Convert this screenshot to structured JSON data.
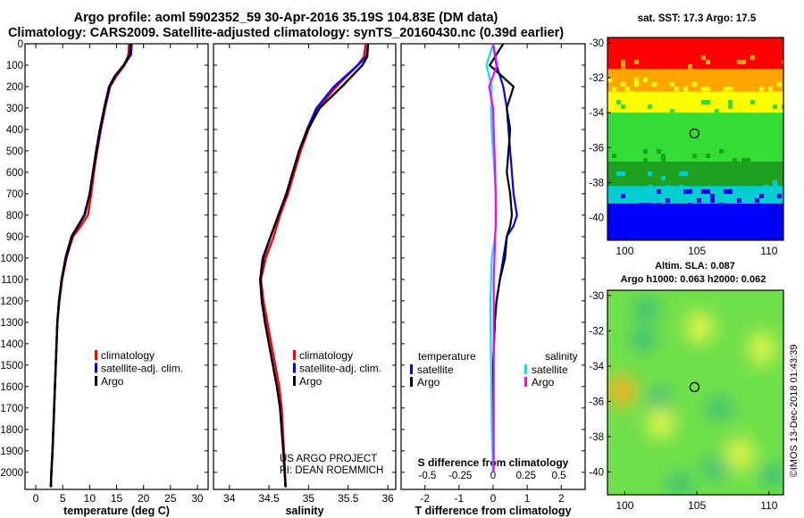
{
  "header": {
    "line1": "Argo profile: aoml 5902352_59 30-Apr-2016 35.19S 104.83E (DM data)",
    "line2": "Climatology: CARS2009. Satellite-adjusted climatology: synTS_20160430.nc (0.39d earlier)"
  },
  "credits": {
    "project": "US ARGO PROJECT",
    "pi": "PI: DEAN ROEMMICH",
    "imos": "©IMOS 13-Dec-2018 01:43:39"
  },
  "colors": {
    "climatology": "#ff0000",
    "satellite": "#0000ff",
    "argo": "#000000",
    "salinity_satellite": "#00e5ee",
    "salinity_argo": "#ff00ff"
  },
  "chart_data": [
    {
      "id": "temperature",
      "type": "line",
      "xlabel": "temperature (deg C)",
      "ylabel": "",
      "xlim": [
        -2,
        32
      ],
      "ylim": [
        2080,
        0
      ],
      "xticks": [
        0,
        5,
        10,
        15,
        20,
        25,
        30
      ],
      "yticks": [
        0,
        100,
        200,
        300,
        400,
        500,
        600,
        700,
        800,
        900,
        1000,
        1100,
        1200,
        1300,
        1400,
        1500,
        1600,
        1700,
        1800,
        1900,
        2000
      ],
      "legend": {
        "placement": "lower-right",
        "entries": [
          "climatology",
          "satellite-adj. clim.",
          "Argo"
        ]
      },
      "series": [
        {
          "name": "climatology",
          "color": "#ff0000",
          "x": [
            17.3,
            17.2,
            16.5,
            15.0,
            13.8,
            12.9,
            12.1,
            11.4,
            10.8,
            10.3,
            9.7,
            8.4,
            6.9,
            5.7,
            4.9,
            4.4,
            4.0,
            3.7,
            3.4,
            3.1,
            2.9,
            2.8
          ],
          "depth": [
            0,
            50,
            100,
            150,
            200,
            300,
            400,
            500,
            600,
            700,
            800,
            850,
            900,
            1000,
            1100,
            1200,
            1300,
            1500,
            1700,
            1900,
            2000,
            2070
          ]
        },
        {
          "name": "satellite-adj. clim.",
          "color": "#0000ff",
          "x": [
            17.8,
            17.7,
            16.4,
            14.8,
            13.7,
            12.8,
            12.0,
            11.3,
            10.6,
            10.0,
            9.0,
            7.8,
            6.6,
            5.5,
            4.8,
            4.3,
            4.0,
            3.7,
            3.4,
            3.1,
            2.9,
            2.8
          ],
          "depth": [
            0,
            50,
            100,
            150,
            200,
            300,
            400,
            500,
            600,
            700,
            800,
            850,
            900,
            1000,
            1100,
            1200,
            1300,
            1500,
            1700,
            1900,
            2000,
            2070
          ]
        },
        {
          "name": "Argo",
          "color": "#000000",
          "x": [
            17.6,
            17.5,
            16.3,
            14.7,
            13.6,
            12.7,
            11.9,
            11.2,
            10.6,
            10.0,
            9.1,
            7.9,
            6.7,
            5.6,
            4.8,
            4.3,
            4.0,
            3.7,
            3.4,
            3.1,
            2.9,
            2.8
          ],
          "depth": [
            0,
            50,
            100,
            150,
            200,
            300,
            400,
            500,
            600,
            700,
            800,
            850,
            900,
            1000,
            1100,
            1200,
            1300,
            1500,
            1700,
            1900,
            2000,
            2070
          ]
        }
      ]
    },
    {
      "id": "salinity",
      "type": "line",
      "xlabel": "salinity",
      "ylabel": "",
      "xlim": [
        33.8,
        36.1
      ],
      "ylim": [
        2080,
        0
      ],
      "xticks": [
        34,
        34.5,
        35,
        35.5,
        36
      ],
      "xtick_labels": [
        "34",
        "34.5",
        "35",
        "35.5",
        "36"
      ],
      "legend": {
        "placement": "lower-right",
        "entries": [
          "climatology",
          "satellite-adj. clim.",
          "Argo"
        ]
      },
      "series": [
        {
          "name": "climatology",
          "color": "#ff0000",
          "x": [
            35.72,
            35.7,
            35.62,
            35.35,
            35.12,
            35.0,
            34.9,
            34.82,
            34.74,
            34.64,
            34.56,
            34.46,
            34.4,
            34.43,
            34.48,
            34.53,
            34.58,
            34.63,
            34.66,
            34.69,
            34.71
          ],
          "depth": [
            0,
            60,
            100,
            200,
            300,
            400,
            500,
            600,
            700,
            800,
            900,
            1000,
            1100,
            1200,
            1300,
            1400,
            1500,
            1600,
            1700,
            1900,
            2070
          ]
        },
        {
          "name": "satellite-adj. clim.",
          "color": "#0000ff",
          "x": [
            35.75,
            35.73,
            35.62,
            35.32,
            35.1,
            34.98,
            34.88,
            34.8,
            34.72,
            34.62,
            34.52,
            34.42,
            34.39,
            34.41,
            34.45,
            34.5,
            34.55,
            34.6,
            34.64,
            34.68,
            34.71
          ],
          "depth": [
            0,
            60,
            100,
            200,
            300,
            400,
            500,
            600,
            700,
            800,
            900,
            1000,
            1100,
            1200,
            1300,
            1400,
            1500,
            1600,
            1700,
            1900,
            2070
          ]
        },
        {
          "name": "Argo",
          "color": "#000000",
          "x": [
            35.75,
            35.74,
            35.68,
            35.42,
            35.14,
            34.99,
            34.88,
            34.8,
            34.72,
            34.62,
            34.52,
            34.43,
            34.39,
            34.41,
            34.45,
            34.5,
            34.55,
            34.6,
            34.64,
            34.68,
            34.71
          ],
          "depth": [
            0,
            60,
            100,
            200,
            300,
            400,
            500,
            600,
            700,
            800,
            900,
            1000,
            1100,
            1200,
            1300,
            1400,
            1500,
            1600,
            1700,
            1900,
            2070
          ]
        }
      ]
    },
    {
      "id": "difference",
      "type": "line",
      "xlabel": "T difference from climatology",
      "x2label": "S difference from climatology",
      "xlim": [
        -2.7,
        2.7
      ],
      "ylim": [
        2080,
        0
      ],
      "xticks": [
        -2,
        -1,
        0,
        1,
        2
      ],
      "x2ticks": [
        -0.5,
        -0.25,
        0,
        0.25,
        0.5
      ],
      "x2tick_labels": [
        "-0.5",
        "-0.25",
        "0",
        "0.25",
        "0.5"
      ],
      "legend": {
        "placement": "lower-center",
        "temperature_title": "temperature",
        "salinity_title": "salinity",
        "entries": [
          "satellite",
          "Argo",
          "satellite",
          "Argo"
        ]
      },
      "series": [
        {
          "name": "temperature satellite",
          "color": "#0000ff",
          "units": "T",
          "x": [
            0.0,
            0.1,
            0.3,
            0.4,
            0.45,
            0.5,
            0.55,
            0.6,
            0.7,
            0.6,
            0.4,
            0.3,
            0.2,
            0.1,
            0.05,
            0.0,
            0.0,
            0.0
          ],
          "depth": [
            0,
            100,
            200,
            300,
            400,
            500,
            600,
            700,
            800,
            850,
            900,
            1000,
            1100,
            1200,
            1300,
            1500,
            1800,
            2000
          ]
        },
        {
          "name": "temperature Argo",
          "color": "#000000",
          "units": "T",
          "x": [
            0.3,
            -0.1,
            0.6,
            0.4,
            0.5,
            0.45,
            0.4,
            0.5,
            0.55,
            0.5,
            0.4,
            0.35,
            0.2,
            0.1,
            0.05,
            0.0,
            0.0,
            0.0
          ],
          "depth": [
            0,
            100,
            200,
            300,
            400,
            500,
            600,
            700,
            800,
            850,
            900,
            1000,
            1100,
            1200,
            1300,
            1500,
            1800,
            2000
          ]
        },
        {
          "name": "salinity satellite",
          "color": "#00e5ee",
          "units": "S",
          "x": [
            0.0,
            -0.05,
            -0.01,
            -0.015,
            -0.01,
            0.0,
            0.01,
            0.02,
            0.025,
            0.02,
            0.015,
            -0.01,
            -0.015,
            -0.02,
            -0.02,
            -0.015,
            -0.01,
            0.0
          ],
          "depth": [
            0,
            100,
            200,
            300,
            400,
            500,
            600,
            700,
            800,
            850,
            900,
            1000,
            1100,
            1200,
            1300,
            1500,
            1800,
            2000
          ]
        },
        {
          "name": "salinity Argo",
          "color": "#ff00ff",
          "units": "S",
          "x": [
            0.0,
            0.03,
            -0.03,
            0.0,
            0.005,
            0.01,
            0.015,
            0.02,
            0.02,
            0.02,
            0.015,
            0.01,
            0.005,
            0.005,
            0.005,
            0.005,
            0.005,
            0.005
          ],
          "depth": [
            0,
            100,
            200,
            300,
            400,
            500,
            600,
            700,
            800,
            850,
            900,
            1000,
            1100,
            1200,
            1300,
            1500,
            1800,
            2000
          ]
        }
      ]
    },
    {
      "id": "sst-map",
      "type": "heatmap",
      "title": "sat. SST: 17.3 Argo: 17.5",
      "xlim": [
        98.8,
        111
      ],
      "ylim": [
        -41.3,
        -29.7
      ],
      "xticks": [
        100,
        105,
        110
      ],
      "yticks": [
        -30,
        -32,
        -34,
        -36,
        -38,
        -40
      ],
      "profile_location": {
        "lon": 104.83,
        "lat": -35.19
      },
      "bands": [
        {
          "color": "#ff0000",
          "lat_from": -29.7,
          "lat_to": -32.0
        },
        {
          "color": "#ffa500",
          "lat_from": -31.5,
          "lat_to": -33.2
        },
        {
          "color": "#ffff00",
          "lat_from": -32.8,
          "lat_to": -34.4
        },
        {
          "color": "#33dd33",
          "lat_from": -34.0,
          "lat_to": -37.2
        },
        {
          "color": "#1fa01f",
          "lat_from": -36.8,
          "lat_to": -38.6
        },
        {
          "color": "#00ced1",
          "lat_from": -38.2,
          "lat_to": -41.3
        },
        {
          "color": "#0000ff",
          "lat_from": -39.2,
          "lat_to": -41.3
        }
      ]
    },
    {
      "id": "sla-map",
      "type": "heatmap",
      "title_line1": "Altim. SLA: 0.087",
      "title_line2": "Argo h1000: 0.063 h2000: 0.062",
      "xlim": [
        98.8,
        111
      ],
      "ylim": [
        -41.3,
        -29.7
      ],
      "xticks": [
        100,
        105,
        110
      ],
      "yticks": [
        -30,
        -32,
        -34,
        -36,
        -38,
        -40
      ],
      "profile_location": {
        "lon": 104.83,
        "lat": -35.19
      },
      "features": [
        {
          "kind": "yellow",
          "lon": 105.2,
          "lat": -31.8
        },
        {
          "kind": "yellow",
          "lon": 109.5,
          "lat": -33.0
        },
        {
          "kind": "yellow",
          "lon": 102.5,
          "lat": -37.2
        },
        {
          "kind": "yellow",
          "lon": 108.0,
          "lat": -39.0
        },
        {
          "kind": "orange",
          "lon": 99.8,
          "lat": -35.4
        },
        {
          "kind": "teal",
          "lon": 101.5,
          "lat": -30.8
        },
        {
          "kind": "teal",
          "lon": 101.3,
          "lat": -32.5
        },
        {
          "kind": "teal",
          "lon": 102.4,
          "lat": -35.9
        },
        {
          "kind": "teal",
          "lon": 106.6,
          "lat": -36.4
        },
        {
          "kind": "teal",
          "lon": 103.8,
          "lat": -40.7
        },
        {
          "kind": "teal",
          "lon": 110.3,
          "lat": -40.2
        },
        {
          "kind": "teal",
          "lon": 106.3,
          "lat": -39.8
        }
      ]
    }
  ]
}
